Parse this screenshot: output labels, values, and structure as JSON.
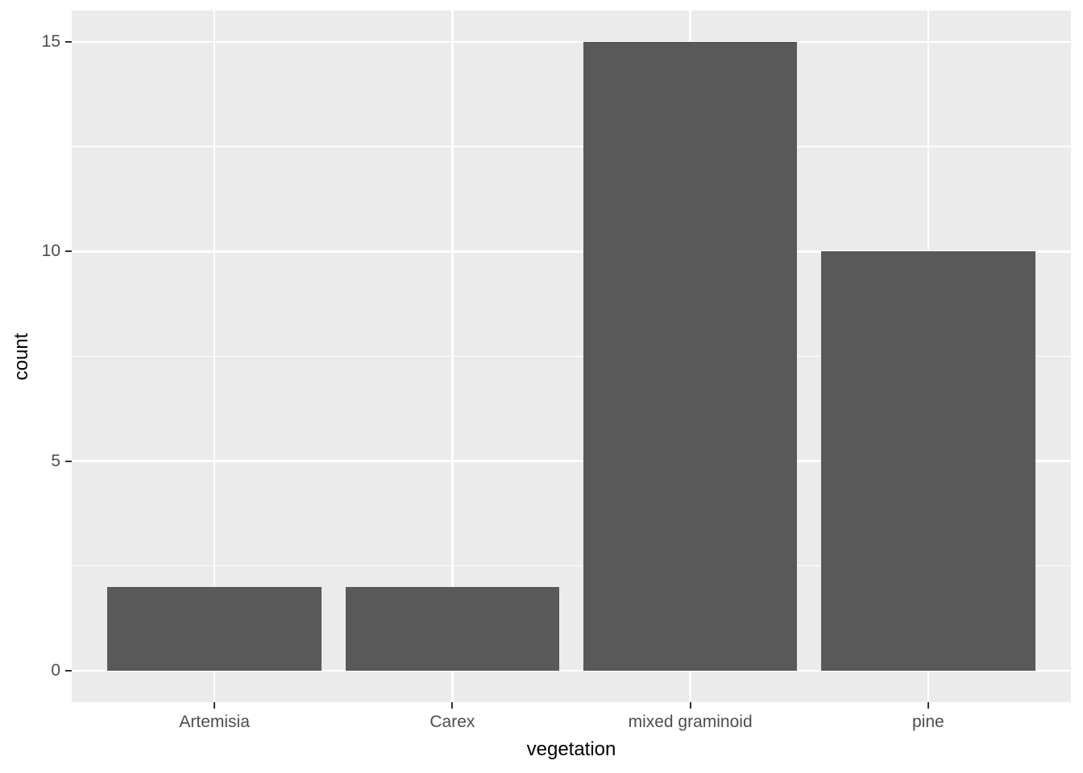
{
  "chart_data": {
    "type": "bar",
    "title": "",
    "xlabel": "vegetation",
    "ylabel": "count",
    "categories": [
      "Artemisia",
      "Carex",
      "mixed graminoid",
      "pine"
    ],
    "values": [
      2,
      2,
      15,
      10
    ],
    "y_major_ticks": [
      0,
      5,
      10,
      15
    ],
    "y_tick_labels": [
      "0",
      "5",
      "10",
      "15"
    ],
    "y_minor_ticks": [
      2.5,
      7.5,
      12.5
    ],
    "ylim": [
      -0.75,
      15.75
    ],
    "x_expand": 0.6,
    "bar_width": 0.9,
    "grid": "major-and-minor",
    "legend": "none",
    "style": "ggplot2-grey",
    "colors": {
      "bar_fill": "#595959",
      "panel_background": "#EBEBEB",
      "gridline": "#FFFFFF",
      "tick_label": "#4D4D4D",
      "axis_title": "#000000",
      "tick_mark": "#333333",
      "outer_background": "#FFFFFF"
    }
  }
}
